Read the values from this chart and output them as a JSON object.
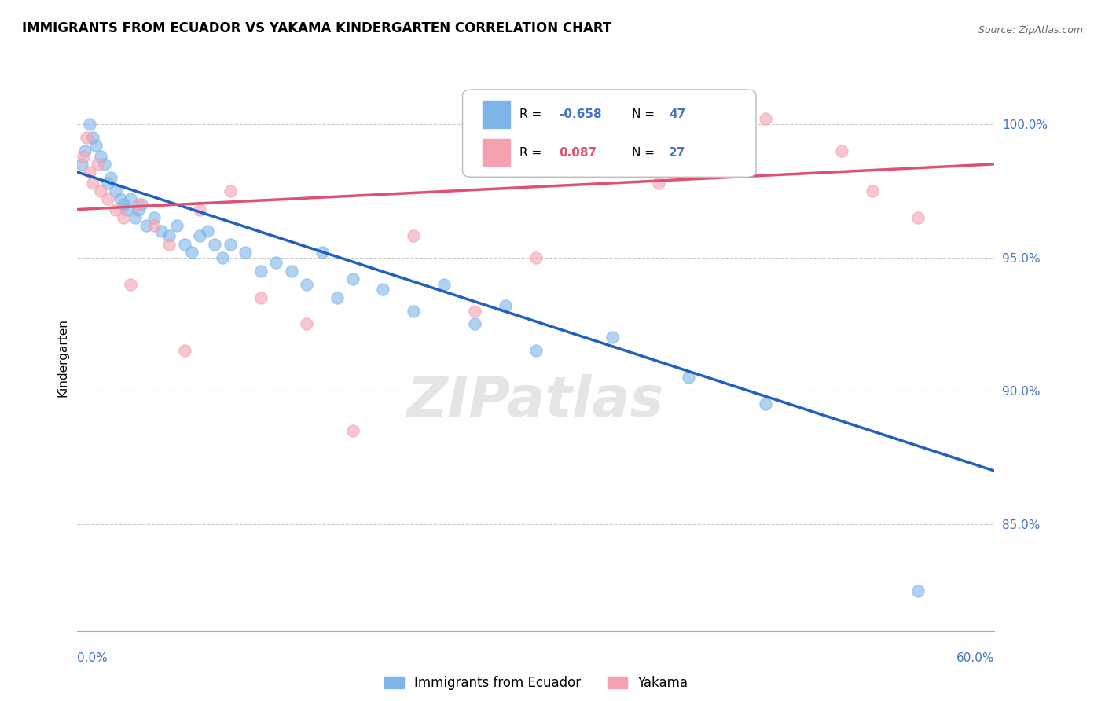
{
  "title": "IMMIGRANTS FROM ECUADOR VS YAKAMA KINDERGARTEN CORRELATION CHART",
  "source": "Source: ZipAtlas.com",
  "ylabel": "Kindergarten",
  "xmin": 0.0,
  "xmax": 60.0,
  "ymin": 81.0,
  "ymax": 101.5,
  "yticks": [
    85.0,
    90.0,
    95.0,
    100.0
  ],
  "ytick_labels": [
    "85.0%",
    "90.0%",
    "95.0%",
    "100.0%"
  ],
  "blue_color": "#7EB5E8",
  "pink_color": "#F4A0B0",
  "blue_line_color": "#2060C0",
  "pink_line_color": "#E05070",
  "blue_r": "-0.658",
  "blue_n": "47",
  "pink_r": "0.087",
  "pink_n": "27",
  "blue_scatter_x": [
    0.3,
    0.5,
    0.8,
    1.0,
    1.2,
    1.5,
    1.8,
    2.0,
    2.2,
    2.5,
    2.8,
    3.0,
    3.2,
    3.5,
    3.8,
    4.0,
    4.2,
    4.5,
    5.0,
    5.5,
    6.0,
    6.5,
    7.0,
    7.5,
    8.0,
    8.5,
    9.0,
    9.5,
    10.0,
    11.0,
    12.0,
    13.0,
    14.0,
    15.0,
    16.0,
    17.0,
    18.0,
    20.0,
    22.0,
    24.0,
    26.0,
    28.0,
    30.0,
    35.0,
    40.0,
    45.0,
    55.0
  ],
  "blue_scatter_y": [
    98.5,
    99.0,
    100.0,
    99.5,
    99.2,
    98.8,
    98.5,
    97.8,
    98.0,
    97.5,
    97.2,
    97.0,
    96.8,
    97.2,
    96.5,
    96.8,
    97.0,
    96.2,
    96.5,
    96.0,
    95.8,
    96.2,
    95.5,
    95.2,
    95.8,
    96.0,
    95.5,
    95.0,
    95.5,
    95.2,
    94.5,
    94.8,
    94.5,
    94.0,
    95.2,
    93.5,
    94.2,
    93.8,
    93.0,
    94.0,
    92.5,
    93.2,
    91.5,
    92.0,
    90.5,
    89.5,
    82.5
  ],
  "pink_scatter_x": [
    0.4,
    0.6,
    0.8,
    1.0,
    1.3,
    1.5,
    2.0,
    2.5,
    3.0,
    3.5,
    4.0,
    5.0,
    6.0,
    7.0,
    8.0,
    10.0,
    12.0,
    15.0,
    18.0,
    22.0,
    26.0,
    30.0,
    38.0,
    45.0,
    50.0,
    52.0,
    55.0
  ],
  "pink_scatter_y": [
    98.8,
    99.5,
    98.2,
    97.8,
    98.5,
    97.5,
    97.2,
    96.8,
    96.5,
    94.0,
    97.0,
    96.2,
    95.5,
    91.5,
    96.8,
    97.5,
    93.5,
    92.5,
    88.5,
    95.8,
    93.0,
    95.0,
    97.8,
    100.2,
    99.0,
    97.5,
    96.5
  ],
  "blue_trend_x": [
    0.0,
    60.0
  ],
  "blue_trend_y": [
    98.2,
    87.0
  ],
  "pink_trend_x": [
    0.0,
    60.0
  ],
  "pink_trend_y": [
    96.8,
    98.5
  ],
  "grid_color": "#CCCCCC",
  "background_color": "#FFFFFF"
}
